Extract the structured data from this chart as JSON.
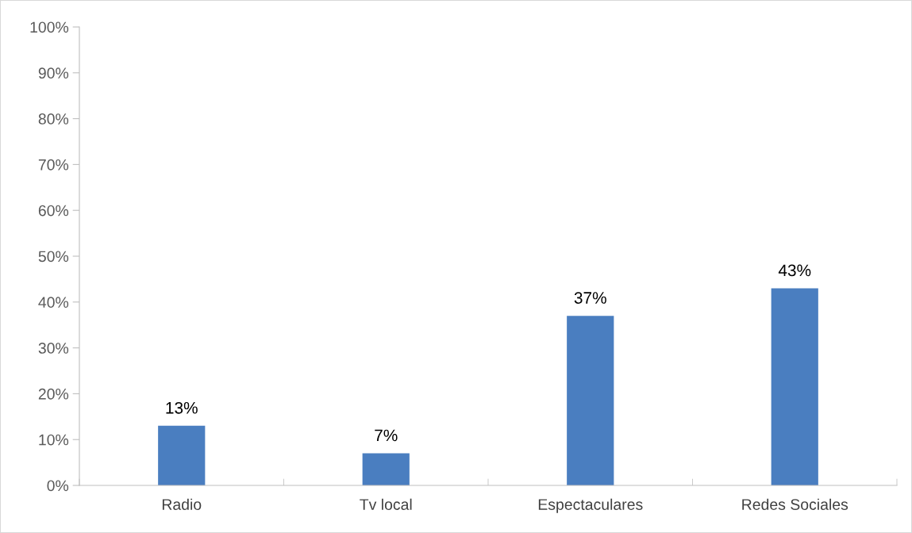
{
  "chart_data": {
    "type": "bar",
    "categories": [
      "Radio",
      "Tv local",
      "Espectaculares",
      "Redes Sociales"
    ],
    "values": [
      13,
      7,
      37,
      43
    ],
    "color": "#4a7ec0",
    "value_labels": [
      "13%",
      "7%",
      "37%",
      "43%"
    ],
    "ylim": [
      0,
      100
    ],
    "yticks": [
      {
        "value": 0,
        "label": "0%"
      },
      {
        "value": 10,
        "label": "10%"
      },
      {
        "value": 20,
        "label": "20%"
      },
      {
        "value": 30,
        "label": "30%"
      },
      {
        "value": 40,
        "label": "40%"
      },
      {
        "value": 50,
        "label": "50%"
      },
      {
        "value": 60,
        "label": "60%"
      },
      {
        "value": 70,
        "label": "70%"
      },
      {
        "value": 80,
        "label": "80%"
      },
      {
        "value": 90,
        "label": "90%"
      },
      {
        "value": 100,
        "label": "100%"
      }
    ],
    "grid": false,
    "legend": false
  }
}
